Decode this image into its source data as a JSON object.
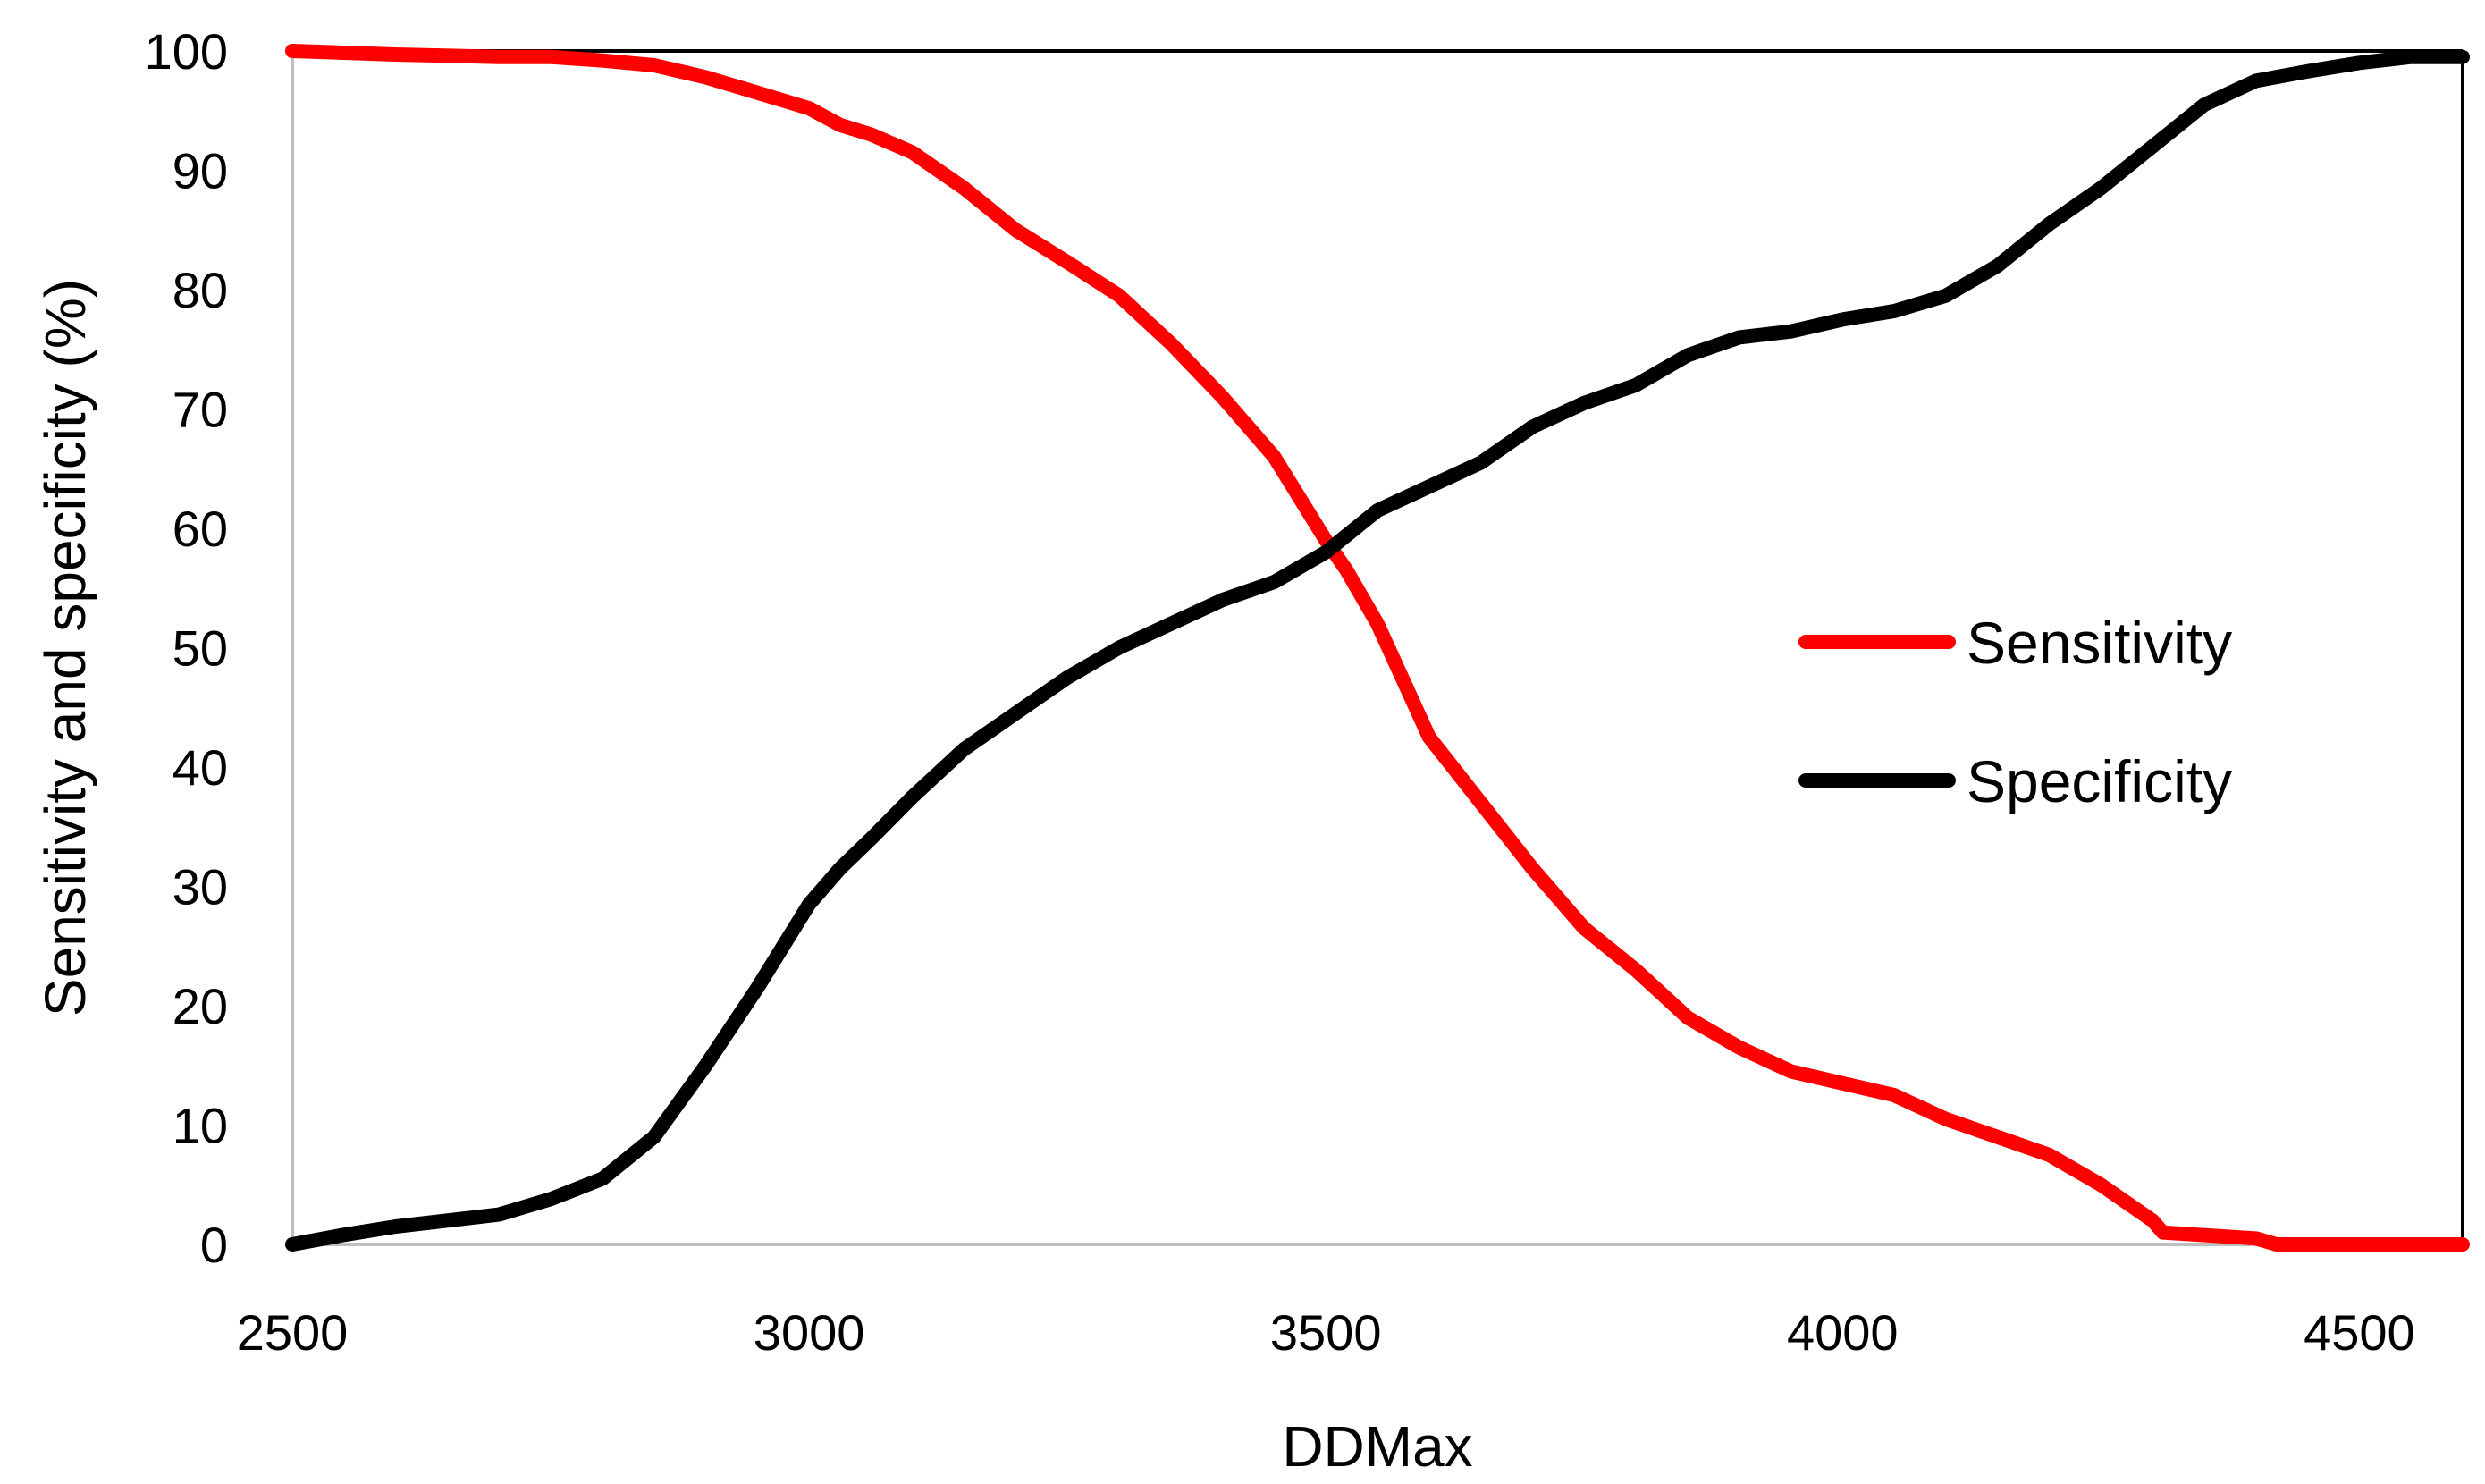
{
  "chart_data": {
    "type": "line",
    "title": "",
    "xlabel": "DDMax",
    "ylabel": "Sensitivity and specificity (%)",
    "xlim": [
      2500,
      4600
    ],
    "ylim": [
      0,
      100
    ],
    "x_ticks": [
      2500,
      3000,
      3500,
      4000,
      4500
    ],
    "y_ticks": [
      0,
      10,
      20,
      30,
      40,
      50,
      60,
      70,
      80,
      90,
      100
    ],
    "grid": false,
    "legend_position": "right-middle",
    "series": [
      {
        "name": "Sensitivity",
        "color": "#ff0000",
        "x": [
          2500,
          2600,
          2700,
          2750,
          2800,
          2850,
          2900,
          2950,
          3000,
          3030,
          3060,
          3100,
          3150,
          3200,
          3250,
          3300,
          3350,
          3400,
          3450,
          3500,
          3520,
          3550,
          3600,
          3650,
          3700,
          3750,
          3800,
          3850,
          3900,
          3950,
          4000,
          4050,
          4100,
          4150,
          4200,
          4250,
          4300,
          4310,
          4400,
          4420,
          4500,
          4600
        ],
        "values": [
          100,
          99.7,
          99.5,
          99.5,
          99.2,
          98.8,
          97.8,
          96.5,
          95.2,
          93.8,
          93,
          91.5,
          88.5,
          85,
          82.3,
          79.5,
          75.5,
          71,
          66,
          59,
          56.5,
          52,
          42.5,
          37,
          31.5,
          26.5,
          23,
          19,
          16.5,
          14.5,
          13.5,
          12.5,
          10.5,
          9,
          7.5,
          5,
          2,
          1,
          0.5,
          0,
          0,
          0
        ]
      },
      {
        "name": "Specificity",
        "color": "#000000",
        "x": [
          2500,
          2550,
          2600,
          2700,
          2750,
          2800,
          2850,
          2900,
          2950,
          3000,
          3030,
          3060,
          3100,
          3150,
          3200,
          3250,
          3300,
          3350,
          3400,
          3450,
          3500,
          3550,
          3600,
          3650,
          3700,
          3750,
          3800,
          3850,
          3900,
          3950,
          4000,
          4050,
          4100,
          4150,
          4200,
          4250,
          4300,
          4350,
          4400,
          4450,
          4500,
          4550,
          4600
        ],
        "values": [
          0,
          0.8,
          1.5,
          2.5,
          3.8,
          5.5,
          9,
          15,
          21.5,
          28.5,
          31.5,
          34,
          37.5,
          41.5,
          44.5,
          47.5,
          50,
          52,
          54,
          55.5,
          58,
          61.5,
          63.5,
          65.5,
          68.5,
          70.5,
          72,
          74.5,
          76,
          76.5,
          77.5,
          78.2,
          79.5,
          82,
          85.5,
          88.5,
          92,
          95.5,
          97.5,
          98.3,
          99,
          99.5,
          99.5
        ]
      }
    ]
  }
}
